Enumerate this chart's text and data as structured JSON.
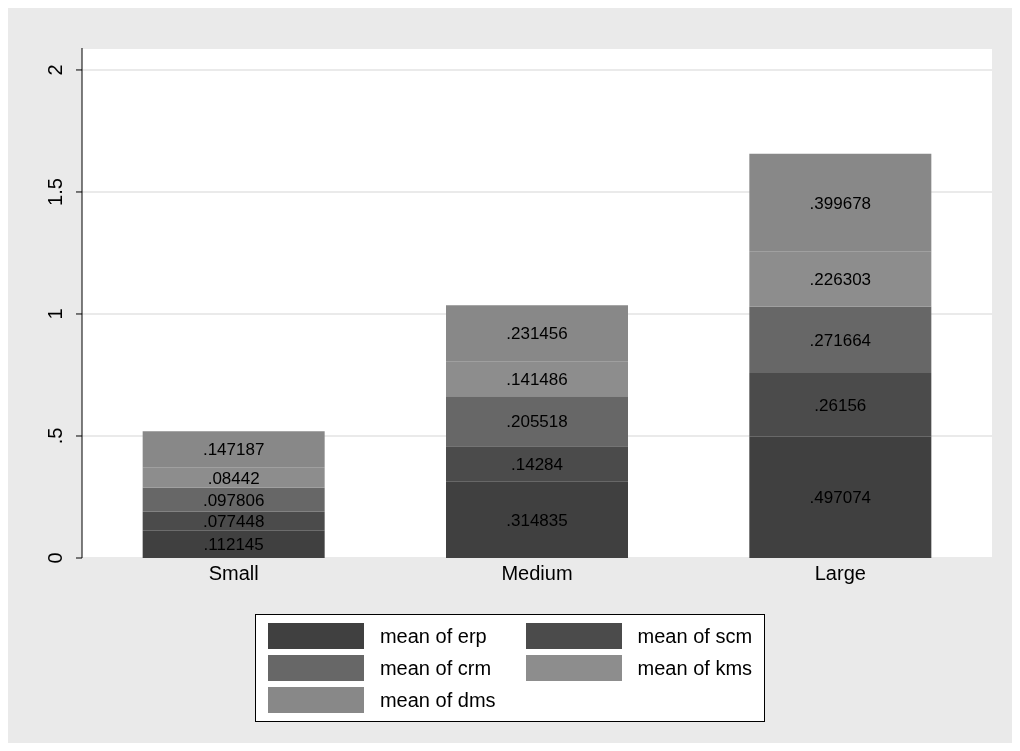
{
  "chart_data": {
    "type": "bar",
    "stacked": true,
    "categories": [
      "Small",
      "Medium",
      "Large"
    ],
    "series": [
      {
        "name": "mean of erp",
        "color": "#404040",
        "values": [
          0.112145,
          0.314835,
          0.497074
        ],
        "value_labels": [
          ".112145",
          ".314835",
          ".497074"
        ]
      },
      {
        "name": "mean of scm",
        "color": "#4b4b4b",
        "values": [
          0.077448,
          0.14284,
          0.26156
        ],
        "value_labels": [
          ".077448",
          ".14284",
          ".26156"
        ]
      },
      {
        "name": "mean of crm",
        "color": "#676767",
        "values": [
          0.097806,
          0.205518,
          0.271664
        ],
        "value_labels": [
          ".097806",
          ".205518",
          ".271664"
        ]
      },
      {
        "name": "mean of kms",
        "color": "#8d8d8d",
        "values": [
          0.08442,
          0.141486,
          0.226303
        ],
        "value_labels": [
          ".08442",
          ".141486",
          ".226303"
        ]
      },
      {
        "name": "mean of dms",
        "color": "#888888",
        "values": [
          0.147187,
          0.231456,
          0.399678
        ],
        "value_labels": [
          ".147187",
          ".231456",
          ".399678"
        ]
      }
    ],
    "ylim": [
      0,
      2.09
    ],
    "yticks": [
      0,
      {
        "value": 0.5,
        "label": ".5"
      },
      1,
      1.5,
      2
    ],
    "grid": "y",
    "legend": "bottom"
  }
}
